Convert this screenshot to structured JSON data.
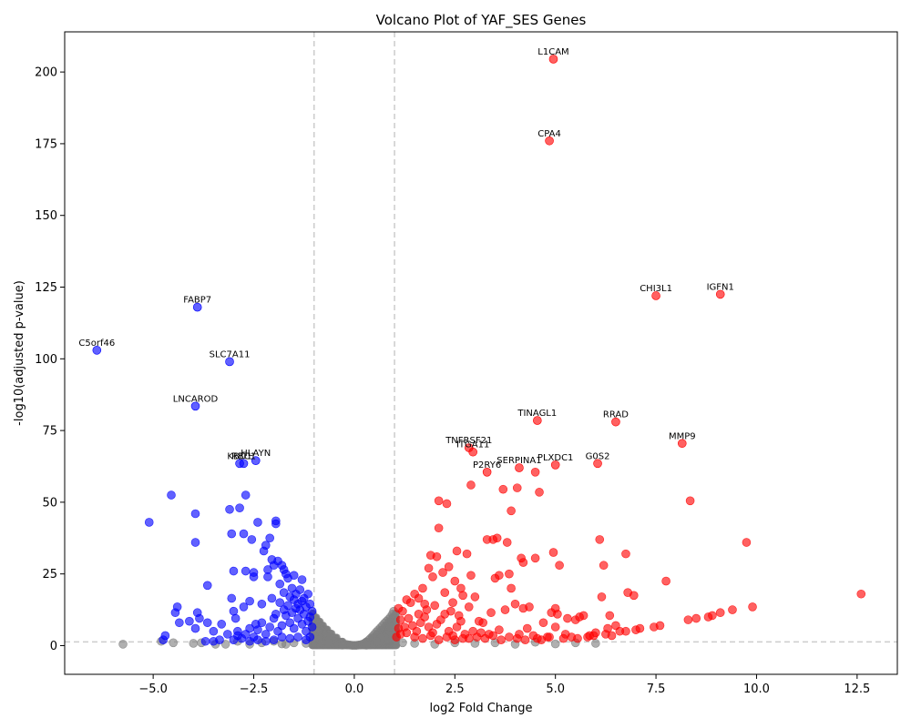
{
  "chart_data": {
    "type": "scatter",
    "title": "Volcano Plot of YAF_SES Genes",
    "xlabel": "log2 Fold Change",
    "ylabel": "-log10(adjusted p-value)",
    "xlim": [
      -7.2,
      13.5
    ],
    "ylim": [
      -10,
      214
    ],
    "xticks": [
      -5.0,
      -2.5,
      0.0,
      2.5,
      5.0,
      7.5,
      10.0,
      12.5
    ],
    "xtick_labels": [
      "−5.0",
      "−2.5",
      "0.0",
      "2.5",
      "5.0",
      "7.5",
      "10.0",
      "12.5"
    ],
    "yticks": [
      0,
      25,
      50,
      75,
      100,
      125,
      150,
      175,
      200
    ],
    "ytick_labels": [
      "0",
      "25",
      "50",
      "75",
      "100",
      "125",
      "150",
      "175",
      "200"
    ],
    "thresholds": {
      "log2fc": [
        -1,
        1
      ],
      "neg_log10_padj": 1.3
    },
    "grid": false,
    "colors": {
      "up": "#ff0000",
      "down": "#0000ff",
      "ns": "#808080",
      "threshold_line": "#cccccc"
    },
    "labeled_genes": [
      {
        "name": "L1CAM",
        "x": 4.95,
        "y": 204.5,
        "group": "up"
      },
      {
        "name": "CPA4",
        "x": 4.85,
        "y": 176,
        "group": "up"
      },
      {
        "name": "CHI3L1",
        "x": 7.5,
        "y": 122,
        "group": "up"
      },
      {
        "name": "IGFN1",
        "x": 9.1,
        "y": 122.5,
        "group": "up"
      },
      {
        "name": "MMP9",
        "x": 8.15,
        "y": 70.5,
        "group": "up"
      },
      {
        "name": "TINAGL1",
        "x": 4.55,
        "y": 78.5,
        "group": "up"
      },
      {
        "name": "RRAD",
        "x": 6.5,
        "y": 78,
        "group": "up"
      },
      {
        "name": "TNFRSF21",
        "x": 2.85,
        "y": 69,
        "group": "up"
      },
      {
        "name": "ITGA11",
        "x": 2.95,
        "y": 67.5,
        "group": "up"
      },
      {
        "name": "PLXDC1",
        "x": 5.0,
        "y": 63,
        "group": "up"
      },
      {
        "name": "G0S2",
        "x": 6.05,
        "y": 63.5,
        "group": "up"
      },
      {
        "name": "SERPINA1",
        "x": 4.1,
        "y": 62,
        "group": "up"
      },
      {
        "name": "P2RY6",
        "x": 3.3,
        "y": 60.5,
        "group": "up"
      },
      {
        "name": "FABP7",
        "x": -3.9,
        "y": 118,
        "group": "down"
      },
      {
        "name": "C5orf46",
        "x": -6.4,
        "y": 103,
        "group": "down"
      },
      {
        "name": "SLC7A11",
        "x": -3.1,
        "y": 99,
        "group": "down"
      },
      {
        "name": "LNCAROD",
        "x": -3.95,
        "y": 83.5,
        "group": "down"
      },
      {
        "name": "HLAYN",
        "x": -2.45,
        "y": 64.5,
        "group": "down"
      },
      {
        "name": "RBC1",
        "x": -2.75,
        "y": 63.5,
        "group": "down"
      },
      {
        "name": "KBD1",
        "x": -2.85,
        "y": 63.5,
        "group": "down"
      }
    ],
    "up_points": [
      [
        12.6,
        18
      ],
      [
        9.9,
        13.5
      ],
      [
        9.75,
        36
      ],
      [
        9.4,
        12.5
      ],
      [
        9.1,
        11.5
      ],
      [
        8.9,
        10.5
      ],
      [
        8.8,
        10
      ],
      [
        8.5,
        9.5
      ],
      [
        8.35,
        50.5
      ],
      [
        8.3,
        9
      ],
      [
        7.75,
        22.5
      ],
      [
        7.6,
        7
      ],
      [
        7.45,
        6.5
      ],
      [
        7.1,
        6
      ],
      [
        7.0,
        5.5
      ],
      [
        6.95,
        17.5
      ],
      [
        6.8,
        18.5
      ],
      [
        6.75,
        32
      ],
      [
        6.75,
        5
      ],
      [
        6.6,
        5
      ],
      [
        6.5,
        7
      ],
      [
        6.35,
        10.5
      ],
      [
        6.3,
        6
      ],
      [
        6.25,
        4
      ],
      [
        6.2,
        28
      ],
      [
        6.15,
        17
      ],
      [
        6.1,
        37
      ],
      [
        5.95,
        3.5
      ],
      [
        5.8,
        3
      ],
      [
        5.7,
        10.5
      ],
      [
        5.6,
        10
      ],
      [
        5.5,
        9
      ],
      [
        5.4,
        3
      ],
      [
        5.3,
        9.5
      ],
      [
        5.2,
        2.5
      ],
      [
        5.1,
        28
      ],
      [
        5.05,
        11
      ],
      [
        5.0,
        13
      ],
      [
        4.95,
        32.5
      ],
      [
        4.9,
        11.5
      ],
      [
        4.8,
        3
      ],
      [
        4.7,
        8
      ],
      [
        4.6,
        53.5
      ],
      [
        4.55,
        2.5
      ],
      [
        4.5,
        30.5
      ],
      [
        4.5,
        60.5
      ],
      [
        4.35,
        13.5
      ],
      [
        4.25,
        2
      ],
      [
        4.2,
        13
      ],
      [
        4.2,
        29
      ],
      [
        4.15,
        30.5
      ],
      [
        4.05,
        55
      ],
      [
        4.0,
        14.5
      ],
      [
        3.9,
        47
      ],
      [
        3.9,
        20
      ],
      [
        3.85,
        25
      ],
      [
        3.8,
        36
      ],
      [
        3.75,
        12.5
      ],
      [
        3.7,
        54.5
      ],
      [
        3.6,
        24.5
      ],
      [
        3.55,
        37.5
      ],
      [
        3.5,
        23.5
      ],
      [
        3.45,
        37
      ],
      [
        3.4,
        11.5
      ],
      [
        3.35,
        4
      ],
      [
        3.2,
        8
      ],
      [
        3.1,
        8.5
      ],
      [
        2.9,
        56
      ],
      [
        2.9,
        24.5
      ],
      [
        2.85,
        13.5
      ],
      [
        2.8,
        32
      ],
      [
        2.7,
        17.5
      ],
      [
        2.65,
        20
      ],
      [
        2.55,
        33
      ],
      [
        2.5,
        22.5
      ],
      [
        2.45,
        15
      ],
      [
        2.35,
        27.5
      ],
      [
        2.3,
        49.5
      ],
      [
        2.25,
        18.5
      ],
      [
        2.2,
        25.5
      ],
      [
        2.1,
        41
      ],
      [
        2.1,
        50.5
      ],
      [
        2.05,
        31
      ],
      [
        1.95,
        24
      ],
      [
        1.9,
        31.5
      ],
      [
        1.85,
        27
      ],
      [
        1.75,
        14.5
      ],
      [
        1.7,
        20
      ],
      [
        1.6,
        16.5
      ],
      [
        1.5,
        18
      ],
      [
        1.4,
        15
      ],
      [
        1.3,
        16
      ],
      [
        1.2,
        12
      ],
      [
        1.15,
        9
      ],
      [
        1.1,
        6
      ],
      [
        1.05,
        3
      ],
      [
        1.15,
        4
      ],
      [
        1.25,
        6.5
      ],
      [
        1.35,
        9.5
      ],
      [
        1.45,
        7
      ],
      [
        1.55,
        5
      ],
      [
        1.65,
        8
      ],
      [
        1.75,
        10
      ],
      [
        1.85,
        6.5
      ],
      [
        1.95,
        4.5
      ],
      [
        2.05,
        7.5
      ],
      [
        2.15,
        9
      ],
      [
        2.25,
        11
      ],
      [
        2.35,
        5
      ],
      [
        2.45,
        3.5
      ],
      [
        2.55,
        6.5
      ],
      [
        2.65,
        8.5
      ],
      [
        2.75,
        4
      ],
      [
        2.85,
        2.5
      ],
      [
        2.95,
        5
      ],
      [
        3.05,
        3
      ],
      [
        3.15,
        4.5
      ],
      [
        3.25,
        2.5
      ],
      [
        3.45,
        3.5
      ],
      [
        3.65,
        2
      ],
      [
        3.85,
        3
      ],
      [
        4.05,
        2.5
      ],
      [
        4.45,
        3.5
      ],
      [
        4.65,
        2
      ],
      [
        4.85,
        3
      ],
      [
        5.25,
        4
      ],
      [
        5.55,
        2.5
      ],
      [
        5.85,
        3.5
      ],
      [
        1.1,
        13
      ],
      [
        1.3,
        4.5
      ],
      [
        1.5,
        3
      ],
      [
        1.7,
        2.5
      ],
      [
        1.9,
        3.5
      ],
      [
        2.1,
        2
      ],
      [
        2.3,
        3
      ],
      [
        2.5,
        2
      ],
      [
        2.7,
        2.5
      ],
      [
        1.6,
        11
      ],
      [
        1.8,
        12.5
      ],
      [
        2.0,
        14
      ],
      [
        2.4,
        12
      ],
      [
        2.6,
        10.5
      ],
      [
        3.0,
        17
      ],
      [
        3.3,
        37
      ],
      [
        3.6,
        5.5
      ],
      [
        4.1,
        4
      ],
      [
        4.3,
        6
      ],
      [
        5.0,
        6.5
      ],
      [
        6.0,
        4.5
      ],
      [
        6.4,
        3.5
      ]
    ],
    "down_points": [
      [
        -5.1,
        43
      ],
      [
        -4.55,
        52.5
      ],
      [
        -4.7,
        3.5
      ],
      [
        -4.75,
        2
      ],
      [
        -4.45,
        11.5
      ],
      [
        -4.4,
        13.5
      ],
      [
        -4.35,
        8
      ],
      [
        -4.1,
        8.5
      ],
      [
        -3.95,
        46
      ],
      [
        -3.95,
        36
      ],
      [
        -3.95,
        6
      ],
      [
        -3.9,
        11.5
      ],
      [
        -3.85,
        9.5
      ],
      [
        -3.65,
        21
      ],
      [
        -3.65,
        8
      ],
      [
        -3.5,
        5
      ],
      [
        -3.5,
        1.5
      ],
      [
        -3.3,
        7.5
      ],
      [
        -3.1,
        47.5
      ],
      [
        -3.05,
        39
      ],
      [
        -3.0,
        26
      ],
      [
        -3.05,
        16.5
      ],
      [
        -3.0,
        12
      ],
      [
        -2.95,
        9.5
      ],
      [
        -2.9,
        5
      ],
      [
        -2.85,
        48
      ],
      [
        -2.75,
        39
      ],
      [
        -2.7,
        52.5
      ],
      [
        -2.7,
        26
      ],
      [
        -2.75,
        13.5
      ],
      [
        -2.6,
        15.5
      ],
      [
        -2.55,
        37
      ],
      [
        -2.5,
        25.5
      ],
      [
        -2.5,
        24
      ],
      [
        -2.45,
        7.5
      ],
      [
        -2.4,
        43
      ],
      [
        -2.3,
        14.5
      ],
      [
        -2.25,
        33
      ],
      [
        -2.2,
        35
      ],
      [
        -2.15,
        26.5
      ],
      [
        -2.1,
        37.5
      ],
      [
        -2.05,
        30
      ],
      [
        -2.05,
        16.5
      ],
      [
        -2.0,
        28
      ],
      [
        -1.95,
        43.5
      ],
      [
        -1.95,
        42.5
      ],
      [
        -1.9,
        29.5
      ],
      [
        -1.85,
        21.5
      ],
      [
        -1.8,
        28
      ],
      [
        -1.75,
        26.5
      ],
      [
        -1.7,
        25
      ],
      [
        -1.65,
        23.5
      ],
      [
        -1.6,
        17
      ],
      [
        -1.55,
        20
      ],
      [
        -1.5,
        16
      ],
      [
        -1.45,
        18
      ],
      [
        -1.4,
        14.5
      ],
      [
        -1.35,
        12.5
      ],
      [
        -1.3,
        15.5
      ],
      [
        -1.25,
        11
      ],
      [
        -1.2,
        13.5
      ],
      [
        -1.15,
        8.5
      ],
      [
        -1.1,
        10
      ],
      [
        -1.05,
        6.5
      ],
      [
        -1.1,
        3
      ],
      [
        -1.2,
        5
      ],
      [
        -1.3,
        7.5
      ],
      [
        -1.4,
        9.5
      ],
      [
        -1.5,
        6
      ],
      [
        -1.6,
        8
      ],
      [
        -1.7,
        10.5
      ],
      [
        -1.8,
        7
      ],
      [
        -1.9,
        5
      ],
      [
        -2.0,
        9.5
      ],
      [
        -2.1,
        6.5
      ],
      [
        -2.2,
        4
      ],
      [
        -2.3,
        8
      ],
      [
        -2.4,
        5.5
      ],
      [
        -2.5,
        3
      ],
      [
        -2.6,
        6
      ],
      [
        -2.7,
        4
      ],
      [
        -2.8,
        2.5
      ],
      [
        -2.9,
        3.5
      ],
      [
        -3.0,
        2
      ],
      [
        -3.15,
        4
      ],
      [
        -3.35,
        2
      ],
      [
        -1.15,
        18
      ],
      [
        -1.25,
        16.5
      ],
      [
        -1.35,
        19.5
      ],
      [
        -1.45,
        13
      ],
      [
        -1.55,
        11.5
      ],
      [
        -1.65,
        14
      ],
      [
        -1.75,
        12.5
      ],
      [
        -1.85,
        15
      ],
      [
        -1.95,
        11
      ],
      [
        -1.05,
        12
      ],
      [
        -1.1,
        14.5
      ],
      [
        -1.2,
        2
      ],
      [
        -1.4,
        3
      ],
      [
        -1.6,
        2.5
      ],
      [
        -1.8,
        3
      ],
      [
        -2.0,
        2
      ],
      [
        -2.2,
        1.5
      ],
      [
        -2.4,
        2
      ],
      [
        -2.6,
        1.5
      ],
      [
        -3.7,
        1.5
      ],
      [
        -1.3,
        23
      ],
      [
        -1.5,
        24.5
      ],
      [
        -1.75,
        18.5
      ],
      [
        -2.15,
        24
      ]
    ],
    "ns_points": [
      [
        -5.75,
        0.5
      ],
      [
        -4.8,
        1.5
      ],
      [
        -4.5,
        1
      ],
      [
        -3.8,
        1
      ],
      [
        -3.45,
        0.5
      ],
      [
        -2.9,
        1.5
      ],
      [
        -2.6,
        0.5
      ],
      [
        -2.3,
        1
      ],
      [
        -2.0,
        1.5
      ],
      [
        -1.7,
        0.5
      ],
      [
        -0.95,
        9
      ],
      [
        -0.9,
        7.5
      ],
      [
        -0.85,
        6
      ],
      [
        -0.8,
        5
      ],
      [
        -0.75,
        4
      ],
      [
        -0.7,
        3.5
      ],
      [
        -0.65,
        3
      ],
      [
        -0.6,
        2.5
      ],
      [
        -0.55,
        2
      ],
      [
        -0.5,
        1.5
      ],
      [
        -0.45,
        1.2
      ],
      [
        -0.4,
        1
      ],
      [
        -0.35,
        0.8
      ],
      [
        -0.3,
        0.6
      ],
      [
        -0.25,
        0.5
      ],
      [
        -0.2,
        0.4
      ],
      [
        -0.15,
        0.3
      ],
      [
        -0.1,
        0.2
      ],
      [
        -0.05,
        0.1
      ],
      [
        0.0,
        0.1
      ],
      [
        0.05,
        0.1
      ],
      [
        0.1,
        0.2
      ],
      [
        0.15,
        0.3
      ],
      [
        0.2,
        0.5
      ],
      [
        0.25,
        0.8
      ],
      [
        0.3,
        1.2
      ],
      [
        0.35,
        1.8
      ],
      [
        0.4,
        2.5
      ],
      [
        0.45,
        3.2
      ],
      [
        0.5,
        4
      ],
      [
        0.55,
        4.8
      ],
      [
        0.6,
        5.5
      ],
      [
        0.65,
        6.2
      ],
      [
        0.7,
        7
      ],
      [
        0.75,
        7.8
      ],
      [
        0.8,
        8.5
      ],
      [
        0.85,
        9.2
      ],
      [
        0.9,
        10
      ],
      [
        0.95,
        11
      ],
      [
        0.98,
        12
      ],
      [
        -0.95,
        1
      ],
      [
        -0.9,
        3
      ],
      [
        -0.85,
        2
      ],
      [
        -0.8,
        1
      ],
      [
        -0.7,
        1.5
      ],
      [
        -0.6,
        0.8
      ],
      [
        -0.5,
        0.5
      ],
      [
        -0.4,
        0.3
      ],
      [
        0.4,
        0.3
      ],
      [
        0.5,
        0.6
      ],
      [
        0.6,
        1
      ],
      [
        0.7,
        1.5
      ],
      [
        0.8,
        2
      ],
      [
        0.9,
        3
      ],
      [
        0.95,
        5
      ],
      [
        0.85,
        4
      ],
      [
        0.75,
        3
      ],
      [
        0.65,
        2.5
      ],
      [
        0.55,
        1.5
      ],
      [
        -0.65,
        1
      ],
      [
        1.5,
        0.8
      ],
      [
        2.0,
        0.5
      ],
      [
        2.5,
        1
      ],
      [
        3.0,
        0.8
      ],
      [
        3.5,
        1
      ],
      [
        4.0,
        0.5
      ],
      [
        4.5,
        1.2
      ],
      [
        5.0,
        0.6
      ],
      [
        5.5,
        1
      ],
      [
        6.0,
        0.8
      ],
      [
        -1.2,
        0.8
      ],
      [
        -1.5,
        1
      ],
      [
        -1.8,
        0.6
      ],
      [
        -3.2,
        0.5
      ],
      [
        -4.0,
        0.8
      ],
      [
        0.3,
        0.15
      ],
      [
        -0.3,
        0.2
      ],
      [
        0.9,
        6.5
      ],
      [
        -0.9,
        5
      ],
      [
        1.2,
        1
      ]
    ]
  }
}
